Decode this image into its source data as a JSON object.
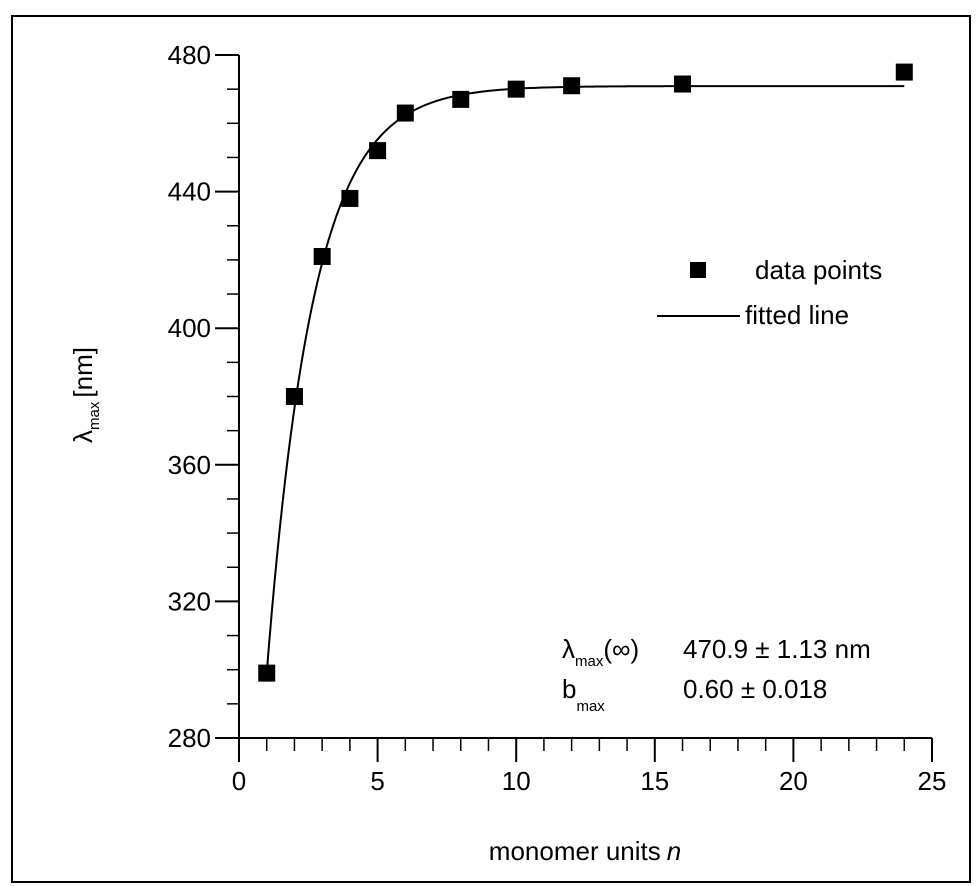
{
  "chart_data": {
    "type": "scatter",
    "xlabel": "monomer units",
    "xlabel_var": "n",
    "ylabel_symbol": "λ",
    "ylabel_sub": "max",
    "ylabel_unit": "[nm]",
    "xlim": [
      0,
      25
    ],
    "ylim": [
      280,
      480
    ],
    "x_major_ticks": [
      0,
      5,
      10,
      15,
      20,
      25
    ],
    "x_tick_labels": [
      "0",
      "5",
      "10",
      "15",
      "20",
      "25"
    ],
    "x_minor_step": 1,
    "y_major_ticks": [
      280,
      320,
      360,
      400,
      440,
      480
    ],
    "y_tick_labels": [
      "280",
      "320",
      "360",
      "400",
      "440",
      "480"
    ],
    "y_minor_step": 10,
    "grid": false,
    "legend_position": "right",
    "series": [
      {
        "name": "data points",
        "marker": "square",
        "x": [
          1,
          2,
          3,
          4,
          5,
          6,
          8,
          10,
          12,
          16,
          24
        ],
        "y": [
          299,
          380,
          421,
          438,
          452,
          463,
          467,
          470,
          471,
          471.5,
          475
        ]
      }
    ],
    "fit": {
      "name": "fitted line",
      "model": "exponential saturation",
      "params": {
        "lambda_inf": 470.9,
        "b": 0.6,
        "y_at_n1": 299
      },
      "x_range": [
        1,
        24
      ]
    },
    "annotation": {
      "row1_symbol": "λ",
      "row1_sub": "max",
      "row1_arg": "(∞)",
      "row1_value": "470.9 ± 1.13 nm",
      "row2_symbol": "b",
      "row2_sub": "max",
      "row2_value": "0.60 ± 0.018"
    },
    "colors": {
      "marker": "#000000",
      "line": "#000000",
      "axis": "#000000",
      "frame": "#000000"
    }
  }
}
